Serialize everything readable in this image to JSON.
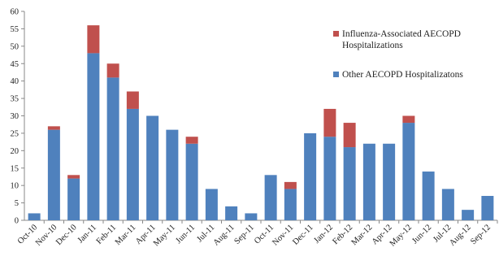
{
  "chart_data": {
    "type": "bar",
    "stacked": true,
    "categories": [
      "Oct-10",
      "Nov-10",
      "Dec-10",
      "Jan-11",
      "Feb-11",
      "Mar-11",
      "Apr-11",
      "May-11",
      "Jun-11",
      "Jul-11",
      "Aug-11",
      "Sep-11",
      "Oct-11",
      "Nov-11",
      "Dec-11",
      "Jan-12",
      "Feb-12",
      "Mar-12",
      "Apr-12",
      "May-12",
      "Jun-12",
      "Jul-12",
      "Aug-12",
      "Sep-12"
    ],
    "series": [
      {
        "name": "Other AECOPD Hospitalizatons",
        "color": "#4f81bd",
        "values": [
          2,
          26,
          12,
          48,
          41,
          32,
          30,
          26,
          22,
          9,
          4,
          2,
          13,
          9,
          25,
          24,
          21,
          22,
          22,
          28,
          14,
          9,
          3,
          7
        ]
      },
      {
        "name": "Influenza-Associated AECOPD Hospitalizations",
        "color": "#c0504d",
        "values": [
          0,
          1,
          1,
          8,
          4,
          5,
          0,
          0,
          2,
          0,
          0,
          0,
          0,
          2,
          0,
          8,
          7,
          0,
          0,
          2,
          0,
          0,
          0,
          0
        ]
      }
    ],
    "ylim": [
      0,
      60
    ],
    "yticks": [
      0,
      5,
      10,
      15,
      20,
      25,
      30,
      35,
      40,
      45,
      50,
      55,
      60
    ],
    "legend": {
      "position": "top-right",
      "entries": [
        {
          "label_line1": "Influenza-Associated AECOPD",
          "label_line2": "Hospitalizations",
          "color": "#c0504d"
        },
        {
          "label_line1": "Other AECOPD Hospitalizatons",
          "label_line2": "",
          "color": "#4f81bd"
        }
      ]
    },
    "grid": false,
    "title": "",
    "xlabel": "",
    "ylabel": ""
  }
}
